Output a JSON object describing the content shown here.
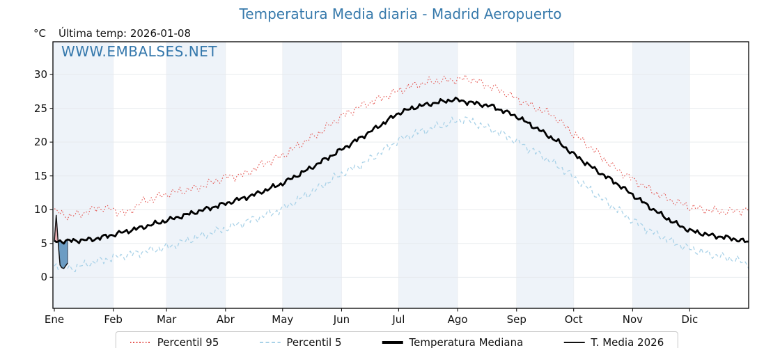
{
  "title": "Temperatura Media diaria - Madrid Aeropuerto",
  "watermark": "WWW.EMBALSES.NET",
  "header": {
    "unit_label": "°C",
    "last_temp_label": "Última temp: 2026-01-08"
  },
  "legend": {
    "items": [
      {
        "label": "Percentil 95",
        "style": "dotted",
        "color": "#e4534e",
        "weight": 2
      },
      {
        "label": "Percentil 5",
        "style": "dashed",
        "color": "#a9d2e8",
        "weight": 2
      },
      {
        "label": "Temperatura Mediana",
        "style": "solid",
        "color": "#000000",
        "weight": 3.6
      },
      {
        "label": "T. Media 2026",
        "style": "solid",
        "color": "#111111",
        "weight": 1.4
      }
    ]
  },
  "chart_data": {
    "type": "line",
    "title": "Temperatura Media diaria - Madrid Aeropuerto",
    "x_axis": {
      "tick_labels": [
        "Ene",
        "Feb",
        "Mar",
        "Abr",
        "May",
        "Jun",
        "Jul",
        "Ago",
        "Sep",
        "Oct",
        "Nov",
        "Dic"
      ],
      "tick_days": [
        0,
        31,
        59,
        90,
        120,
        151,
        181,
        212,
        243,
        273,
        304,
        334
      ],
      "days_in_year": 365,
      "shaded_month_indices": [
        0,
        2,
        4,
        6,
        8,
        10
      ],
      "band_color": "#eef3f9",
      "grid_color": "#e6e9ed"
    },
    "y_axis": {
      "unit": "°C",
      "ticks": [
        0,
        5,
        10,
        15,
        20,
        25,
        30
      ],
      "ylim": [
        -4.6,
        34.85
      ]
    },
    "series": [
      {
        "name": "Percentil 95",
        "color": "#e4534e",
        "style": "dotted",
        "width": 1.1,
        "noise_amp": 0.5,
        "noise_seed": 7,
        "anchor_days": [
          0,
          8,
          15,
          23,
          31,
          38,
          45,
          59,
          75,
          90,
          100,
          110,
          120,
          130,
          140,
          151,
          160,
          170,
          181,
          190,
          200,
          210,
          218,
          226,
          235,
          243,
          252,
          262,
          273,
          283,
          293,
          304,
          314,
          324,
          334,
          344,
          354,
          365
        ],
        "anchor_values": [
          9.8,
          9.0,
          9.5,
          10.3,
          10.0,
          9.4,
          11.0,
          12.3,
          13.2,
          14.8,
          15.2,
          16.8,
          18.0,
          19.8,
          21.5,
          23.8,
          25.2,
          26.3,
          27.6,
          28.5,
          29.0,
          29.2,
          29.4,
          28.6,
          27.6,
          26.4,
          25.2,
          24.0,
          21.2,
          19.0,
          16.5,
          14.5,
          12.8,
          11.4,
          10.4,
          9.9,
          9.7,
          10.0
        ]
      },
      {
        "name": "Percentil 5",
        "color": "#a9d2e8",
        "style": "dashed",
        "width": 1.3,
        "noise_amp": 0.5,
        "noise_seed": 13,
        "anchor_days": [
          0,
          10,
          20,
          31,
          45,
          59,
          75,
          90,
          105,
          120,
          135,
          151,
          163,
          173,
          181,
          190,
          200,
          210,
          216,
          226,
          235,
          243,
          255,
          265,
          273,
          285,
          295,
          304,
          315,
          325,
          334,
          345,
          355,
          365
        ],
        "anchor_values": [
          1.8,
          1.3,
          2.2,
          2.9,
          3.7,
          4.4,
          5.9,
          7.2,
          8.6,
          10.1,
          12.6,
          15.3,
          16.9,
          18.8,
          20.3,
          21.3,
          22.2,
          23.0,
          23.4,
          22.3,
          21.3,
          20.1,
          18.2,
          16.4,
          14.8,
          12.2,
          10.2,
          8.4,
          6.6,
          5.2,
          4.2,
          3.4,
          2.8,
          2.0
        ]
      },
      {
        "name": "Temperatura Mediana",
        "color": "#000000",
        "style": "solid",
        "width": 2.8,
        "noise_amp": 0.28,
        "noise_seed": 3,
        "anchor_days": [
          0,
          10,
          20,
          31,
          45,
          59,
          75,
          90,
          105,
          120,
          135,
          151,
          163,
          173,
          181,
          190,
          200,
          210,
          220,
          230,
          243,
          255,
          265,
          273,
          285,
          295,
          304,
          315,
          325,
          334,
          345,
          355,
          365
        ],
        "anchor_values": [
          5.3,
          5.4,
          5.6,
          6.3,
          7.3,
          8.4,
          9.7,
          10.9,
          12.2,
          13.9,
          16.2,
          18.9,
          21.0,
          22.8,
          24.3,
          25.2,
          25.8,
          26.3,
          25.8,
          25.3,
          23.8,
          21.8,
          20.0,
          18.2,
          15.8,
          14.0,
          12.2,
          10.0,
          8.2,
          6.9,
          6.2,
          5.8,
          5.2
        ]
      }
    ],
    "series_2026": {
      "name": "T. Media 2026",
      "color": "#111111",
      "width": 1.4,
      "days": [
        0,
        1,
        2,
        3,
        4,
        5,
        6,
        7
      ],
      "values": [
        5.3,
        9.2,
        5.2,
        1.8,
        1.4,
        1.3,
        1.7,
        2.1
      ],
      "fill_above_color": "#e9a9ae",
      "fill_below_color": "#6698c1",
      "fill_edge_color": "#2b3c50"
    }
  }
}
